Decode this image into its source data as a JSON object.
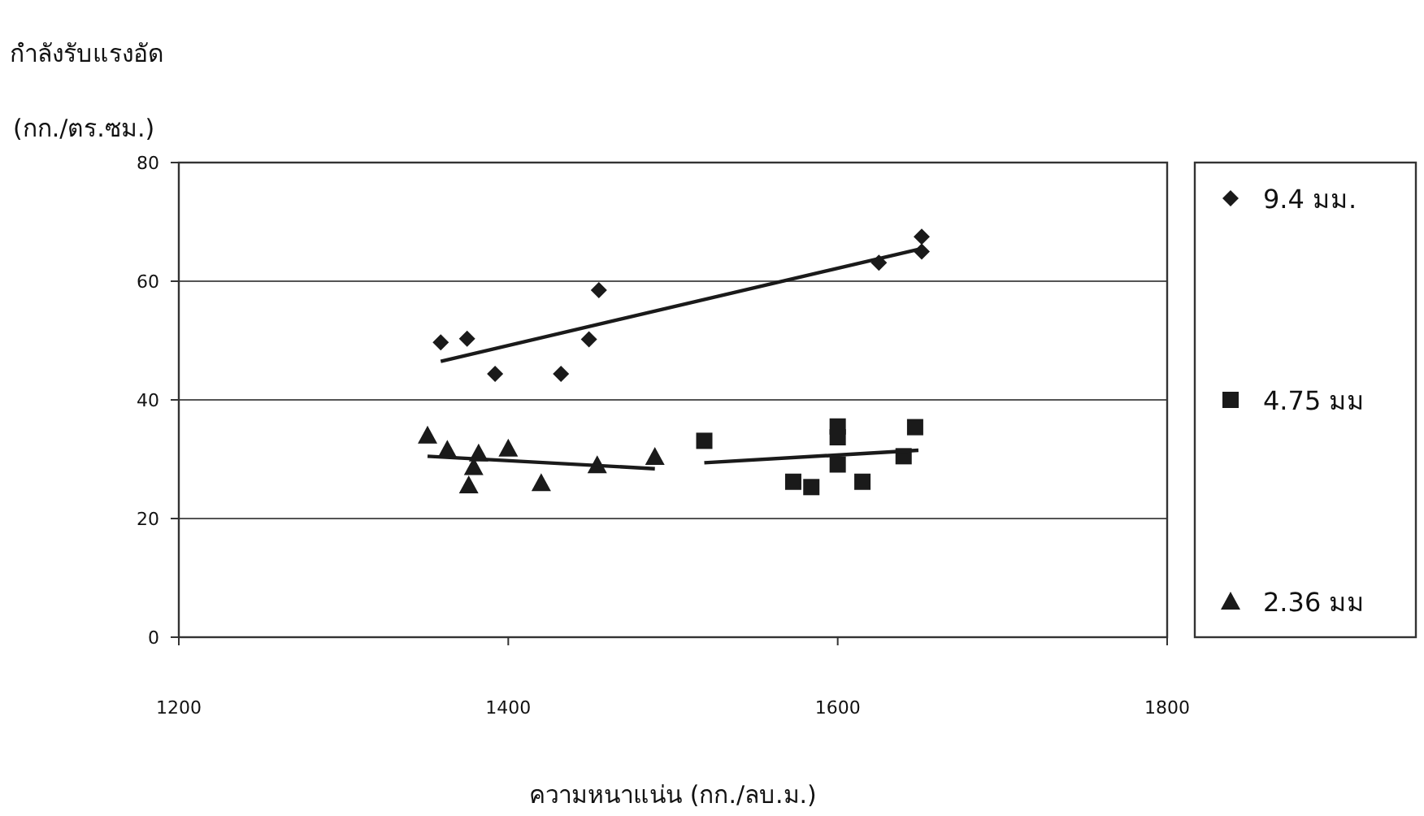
{
  "chart_data": {
    "type": "scatter",
    "title": "กำลังรับแรงอัด",
    "ylabel": "(กก./ตร.ซม.)",
    "xlabel": "ความหนาแน่น (กก./ลบ.ม.)",
    "xlim": [
      1200,
      1800
    ],
    "xticks": [
      1200,
      1400,
      1600,
      1800
    ],
    "ylim": [
      0,
      80
    ],
    "yticks": [
      0,
      20,
      40,
      60,
      80
    ],
    "grid": "y",
    "legend": "right",
    "series": [
      {
        "name": "9.4 มม.",
        "type": "scatter",
        "marker": "diamond",
        "color": "#1a1a1a",
        "x": [
          1359,
          1375,
          1392,
          1432,
          1449,
          1455,
          1625,
          1651,
          1651
        ],
        "values": [
          49.7,
          50.3,
          44.4,
          44.4,
          50.2,
          58.5,
          63.1,
          67.5,
          65.0
        ]
      },
      {
        "name": "4.75 มม",
        "type": "scatter",
        "marker": "square",
        "color": "#1a1a1a",
        "x": [
          1519,
          1573,
          1584,
          1600,
          1600,
          1600,
          1615,
          1640,
          1647
        ],
        "values": [
          33.1,
          26.2,
          25.3,
          35.5,
          33.7,
          29.1,
          26.2,
          30.5,
          35.4
        ]
      },
      {
        "name": "2.36 มม",
        "type": "scatter",
        "marker": "triangle",
        "color": "#1a1a1a",
        "x": [
          1351,
          1363,
          1382,
          1379,
          1376,
          1400,
          1420,
          1454,
          1489
        ],
        "values": [
          34.0,
          31.6,
          31.0,
          28.7,
          25.6,
          31.8,
          26.0,
          29.0,
          30.4
        ]
      },
      {
        "type": "line",
        "color": "#1a1a1a",
        "x": [
          1359,
          1651
        ],
        "values": [
          46.5,
          65.5
        ]
      },
      {
        "type": "line",
        "color": "#1a1a1a",
        "x": [
          1519,
          1649
        ],
        "values": [
          29.4,
          31.5
        ]
      },
      {
        "type": "line",
        "color": "#1a1a1a",
        "x": [
          1351,
          1489
        ],
        "values": [
          30.5,
          28.4
        ]
      }
    ]
  }
}
